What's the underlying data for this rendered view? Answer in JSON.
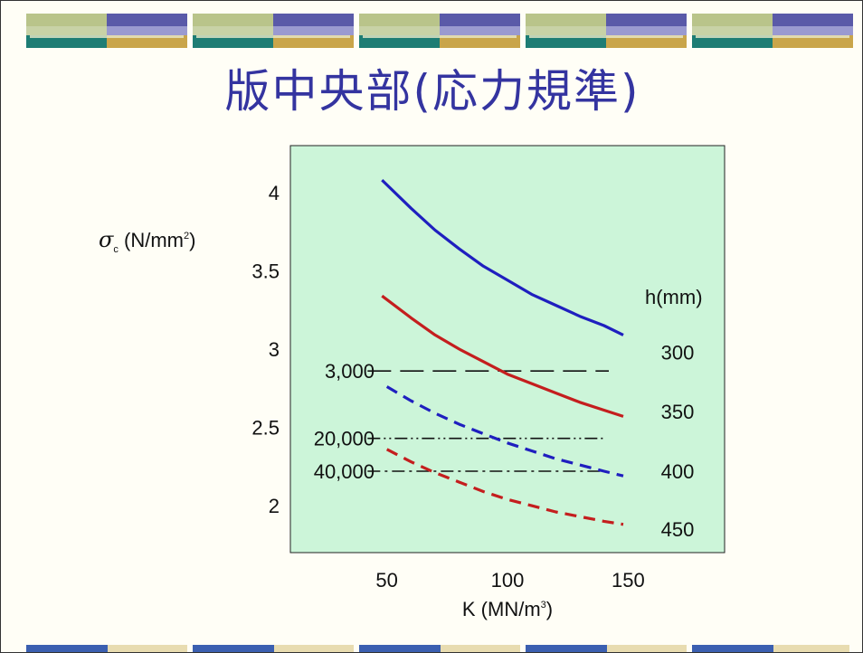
{
  "title": "版中央部(応力規準)",
  "chart_data": {
    "type": "line",
    "xlabel": "K (MN/m³)",
    "ylabel": "σc (N/mm²)",
    "xlim": [
      10,
      190
    ],
    "ylim": [
      1.7,
      4.3
    ],
    "xticks": [
      50,
      100,
      150
    ],
    "yticks": [
      2,
      2.5,
      3,
      3.5,
      4
    ],
    "ytick_labels": [
      "2",
      "2.5",
      "3",
      "3.5",
      "4"
    ],
    "background": "#ccf5d9",
    "series_header": "h(mm)",
    "series": [
      {
        "label": "300",
        "color": "#1f1fbf",
        "dash": "solid",
        "label_y": 2.98,
        "x": [
          48,
          60,
          70,
          80,
          90,
          100,
          110,
          120,
          130,
          140,
          148
        ],
        "y": [
          4.08,
          3.9,
          3.76,
          3.64,
          3.53,
          3.44,
          3.35,
          3.28,
          3.21,
          3.15,
          3.09
        ]
      },
      {
        "label": "350",
        "color": "#c41e1e",
        "dash": "solid",
        "label_y": 2.6,
        "x": [
          48,
          60,
          70,
          80,
          90,
          100,
          110,
          120,
          130,
          140,
          148
        ],
        "y": [
          3.34,
          3.2,
          3.09,
          3.0,
          2.92,
          2.84,
          2.78,
          2.72,
          2.66,
          2.61,
          2.57
        ]
      },
      {
        "label": "400",
        "color": "#1f1fbf",
        "dash": "dashed",
        "label_y": 2.22,
        "x": [
          50,
          60,
          70,
          80,
          90,
          100,
          110,
          120,
          130,
          140,
          148
        ],
        "y": [
          2.76,
          2.67,
          2.59,
          2.52,
          2.46,
          2.4,
          2.35,
          2.3,
          2.26,
          2.22,
          2.19
        ]
      },
      {
        "label": "450",
        "color": "#c41e1e",
        "dash": "dashed",
        "label_y": 1.85,
        "x": [
          50,
          60,
          70,
          80,
          90,
          100,
          110,
          120,
          130,
          140,
          148
        ],
        "y": [
          2.36,
          2.28,
          2.21,
          2.15,
          2.09,
          2.04,
          2.0,
          1.96,
          1.93,
          1.9,
          1.88
        ]
      }
    ],
    "reference_lines": [
      {
        "label": "3,000",
        "y": 2.86,
        "x_start": 42,
        "x_end": 142,
        "style": "long-dash"
      },
      {
        "label": "20,000",
        "y": 2.43,
        "x_start": 42,
        "x_end": 140,
        "style": "dash-dot-dot"
      },
      {
        "label": "40,000",
        "y": 2.22,
        "x_start": 42,
        "x_end": 141,
        "style": "dash-dot"
      }
    ]
  }
}
